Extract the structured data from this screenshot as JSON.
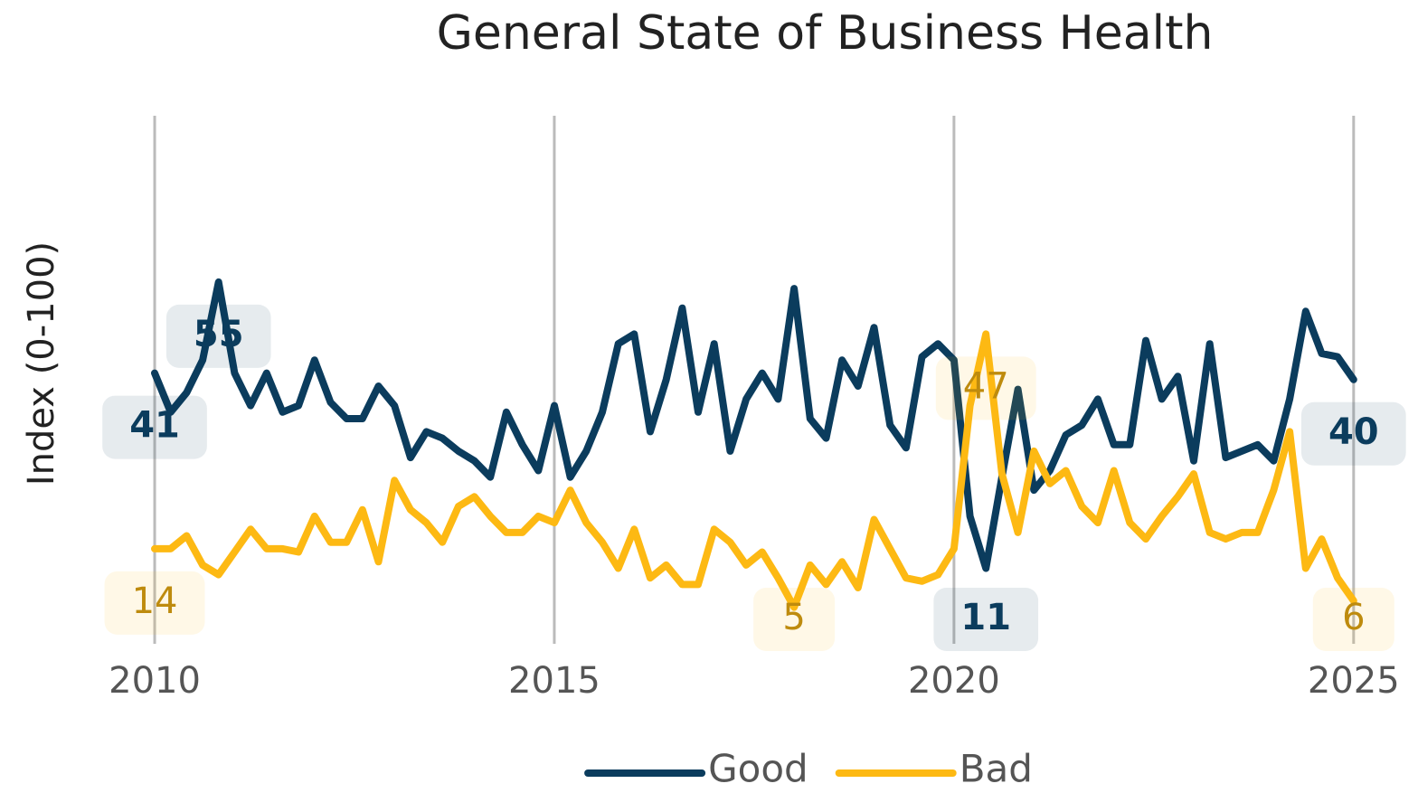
{
  "chart_data": {
    "type": "line",
    "title": "General State of Business Health",
    "y_label": "Index (0-100)",
    "x": [
      2010,
      2010.2,
      2010.4,
      2010.6,
      2010.8,
      2011,
      2011.2,
      2011.4,
      2011.6,
      2011.8,
      2012,
      2012.2,
      2012.4,
      2012.6,
      2012.8,
      2013,
      2013.2,
      2013.4,
      2013.6,
      2013.8,
      2014,
      2014.2,
      2014.4,
      2014.6,
      2014.8,
      2015,
      2015.2,
      2015.4,
      2015.6,
      2015.8,
      2016,
      2016.2,
      2016.4,
      2016.6,
      2016.8,
      2017,
      2017.2,
      2017.4,
      2017.6,
      2017.8,
      2018,
      2018.2,
      2018.4,
      2018.6,
      2018.8,
      2019,
      2019.2,
      2019.4,
      2019.6,
      2019.8,
      2020,
      2020.2,
      2020.4,
      2020.6,
      2020.8,
      2021,
      2021.2,
      2021.4,
      2021.6,
      2021.8,
      2022,
      2022.2,
      2022.4,
      2022.6,
      2022.8,
      2023,
      2023.2,
      2023.4,
      2023.6,
      2023.8,
      2024,
      2024.2,
      2024.4,
      2024.6,
      2024.8,
      2025
    ],
    "series": [
      {
        "name": "Good",
        "color": "#0b3c5d",
        "values": [
          41,
          35,
          38,
          43,
          55,
          41,
          36,
          41,
          35,
          36,
          43,
          36.5,
          34,
          34,
          39,
          36,
          28,
          32,
          31,
          29,
          27.5,
          25,
          35,
          30,
          26,
          36,
          25,
          29,
          35,
          45.5,
          47,
          32,
          40,
          51,
          35,
          45.5,
          29,
          37,
          41,
          37,
          54,
          34,
          31,
          43,
          39,
          48,
          33,
          29.5,
          43.5,
          45.5,
          43,
          19,
          11,
          25,
          38.5,
          23,
          26,
          31.5,
          33,
          37,
          30,
          30,
          46,
          37,
          40.5,
          27.5,
          45.5,
          28,
          29,
          30,
          27.5,
          37,
          50.5,
          44,
          43.5,
          40
        ]
      },
      {
        "name": "Bad",
        "color": "#fdb913",
        "values": [
          14,
          14,
          16,
          11.5,
          10,
          13.5,
          17,
          14,
          14,
          13.5,
          19,
          15,
          15,
          20,
          12,
          24.5,
          20,
          18,
          15,
          20.5,
          22,
          19,
          16.5,
          16.5,
          19,
          18,
          23,
          18,
          15,
          11,
          17,
          9.5,
          11.5,
          8.5,
          8.5,
          17,
          15,
          11.5,
          13.5,
          9.5,
          5,
          11.5,
          8.5,
          12,
          8,
          18.5,
          14,
          9.5,
          9,
          10,
          14,
          36,
          47,
          25.5,
          16.5,
          29,
          24,
          26,
          20.5,
          18,
          26,
          18,
          15.5,
          19,
          22,
          25.5,
          16.5,
          15.5,
          16.5,
          16.5,
          23,
          32,
          11,
          15.5,
          9.5,
          6
        ]
      }
    ],
    "xlim": [
      2009.4,
      2025.5
    ],
    "xticks": [
      2010,
      2015,
      2020,
      2025
    ],
    "ylim": [
      0,
      80
    ],
    "grid": true,
    "legend": "bottom"
  }
}
